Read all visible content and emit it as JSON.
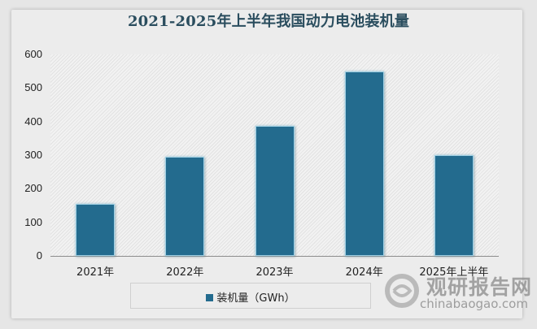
{
  "chart_data": {
    "type": "bar",
    "title": "2021-2025年上半年我国动力电池装机量",
    "categories": [
      "2021年",
      "2022年",
      "2023年",
      "2024年",
      "2025年上半年"
    ],
    "series": [
      {
        "name": "装机量（GWh）",
        "values": [
          154.5,
          294.6,
          387.7,
          548.4,
          299.6
        ],
        "color": "#236b8e"
      }
    ],
    "xlabel": "",
    "ylabel": "",
    "ylim": [
      0,
      600
    ],
    "yticks": [
      0,
      100,
      200,
      300,
      400,
      500,
      600
    ],
    "grid": false,
    "legend_position": "bottom"
  },
  "watermark": {
    "name": "观研报告网",
    "url_text": "chinabaogao.com"
  }
}
